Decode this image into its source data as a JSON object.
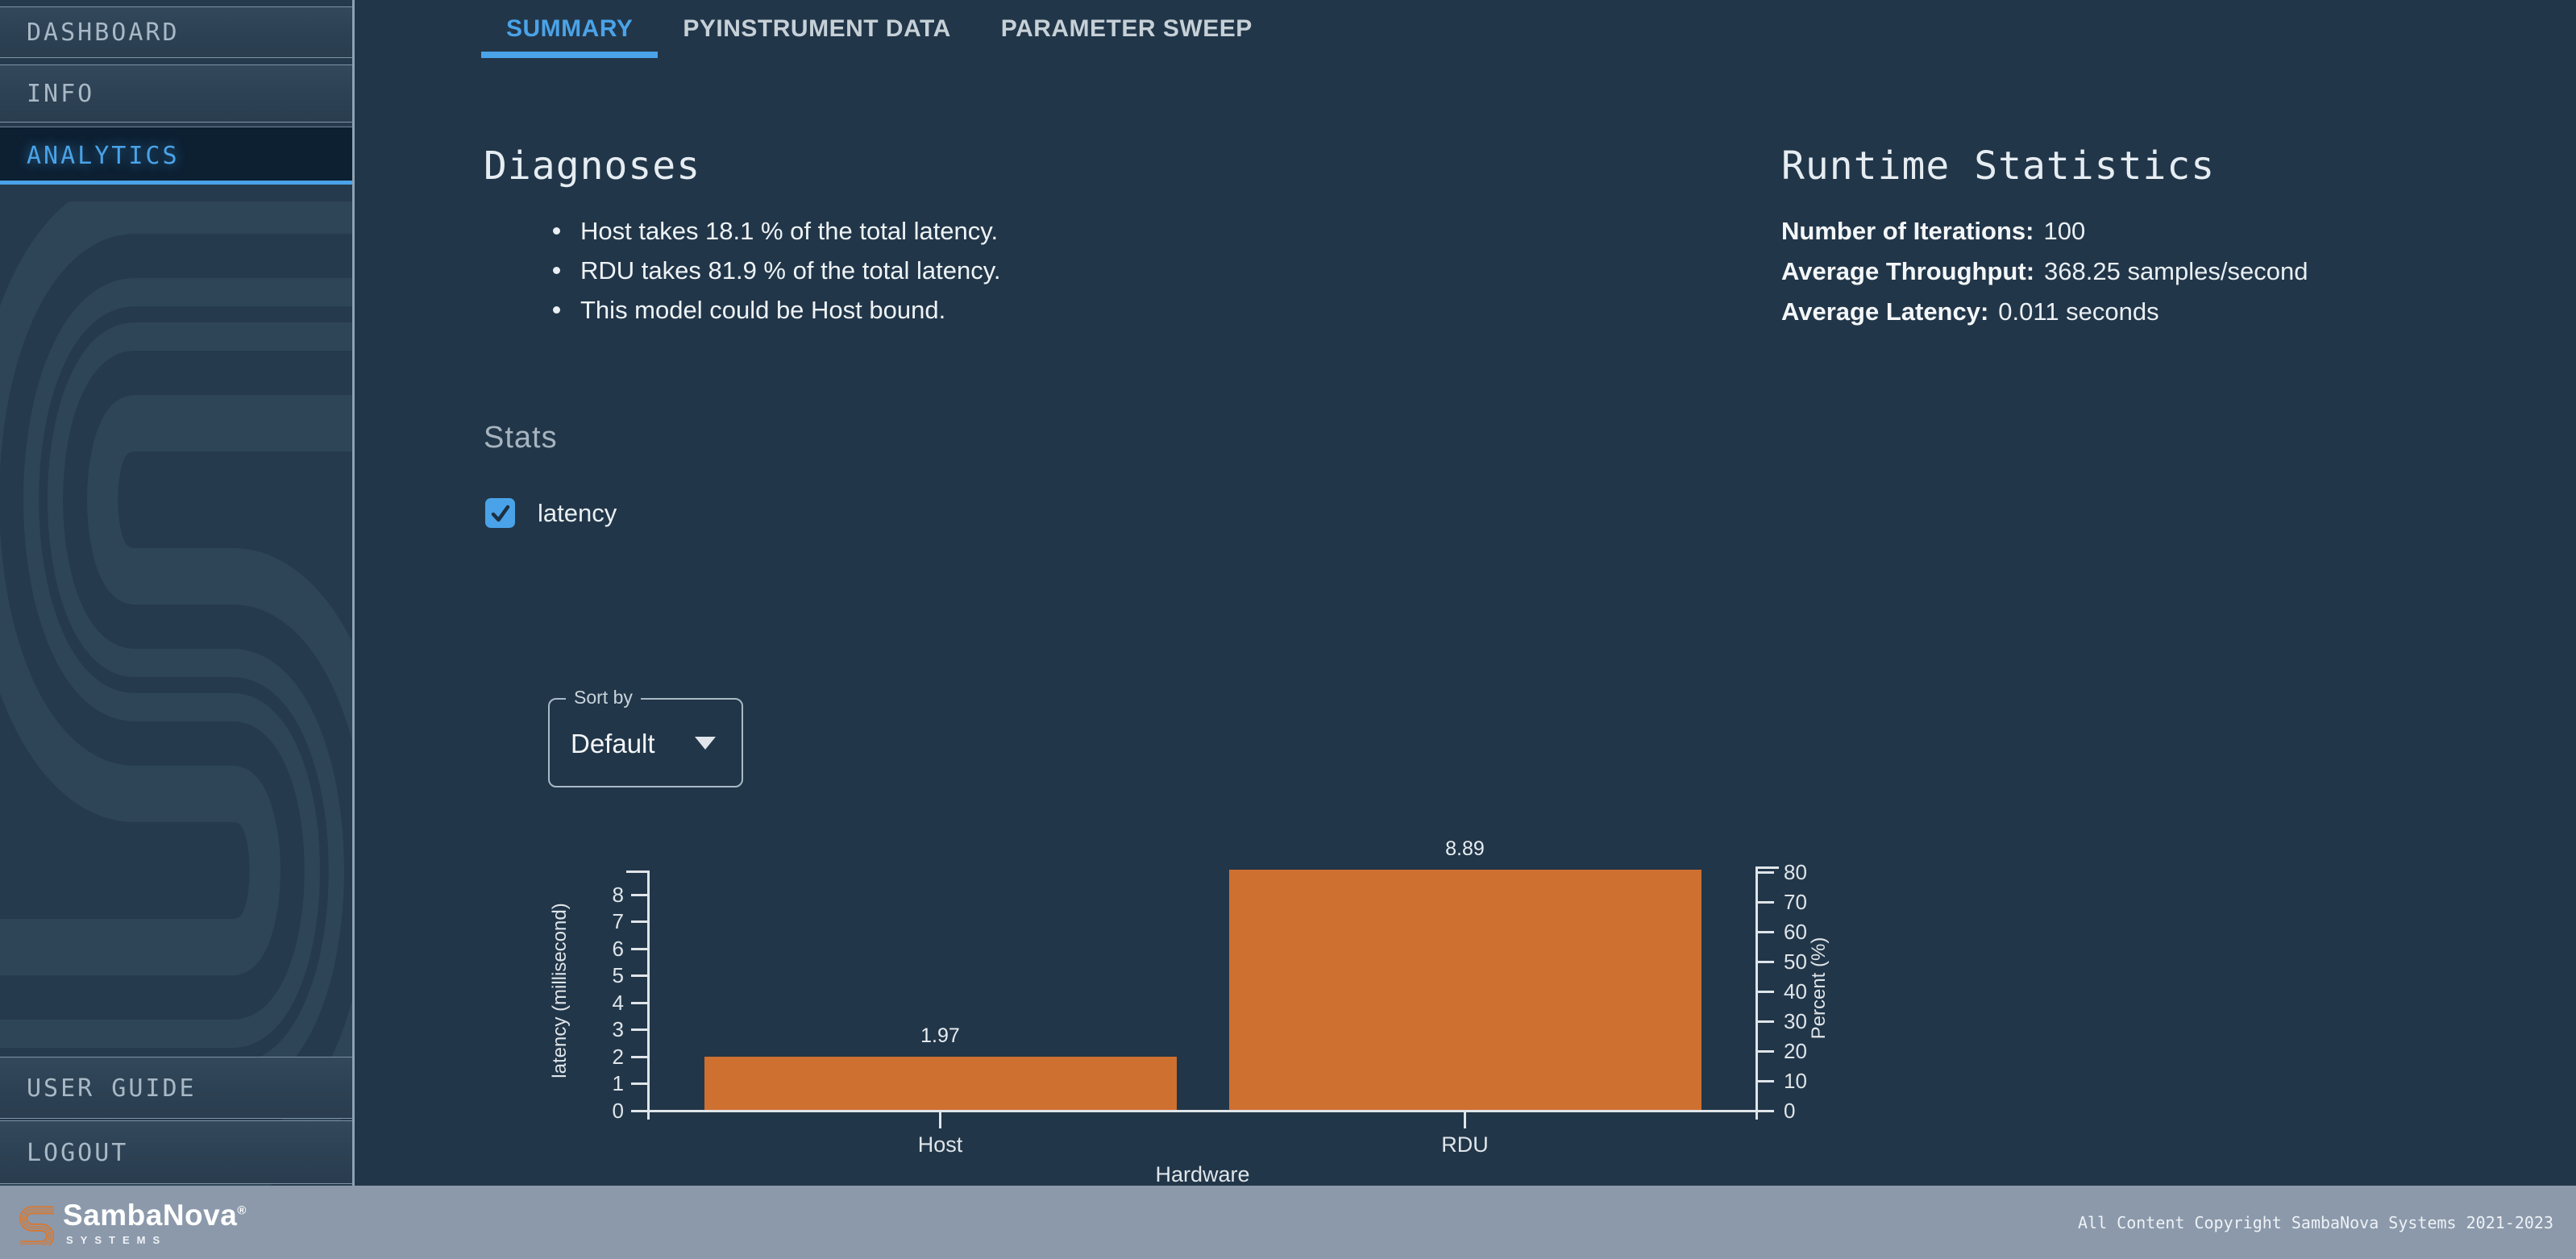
{
  "sidebar": {
    "items": [
      {
        "label": "DASHBOARD",
        "active": false
      },
      {
        "label": "INFO",
        "active": false
      },
      {
        "label": "ANALYTICS",
        "active": true
      }
    ],
    "footer_items": [
      {
        "label": "USER GUIDE"
      },
      {
        "label": "LOGOUT"
      }
    ]
  },
  "tabs": [
    {
      "label": "SUMMARY",
      "active": true
    },
    {
      "label": "PYINSTRUMENT DATA",
      "active": false
    },
    {
      "label": "PARAMETER SWEEP",
      "active": false
    }
  ],
  "diagnoses": {
    "title": "Diagnoses",
    "items": [
      "Host takes 18.1 % of the total latency.",
      "RDU takes 81.9 % of the total latency.",
      "This model could be Host bound."
    ]
  },
  "runtime": {
    "title": "Runtime Statistics",
    "stats": [
      {
        "label": "Number of Iterations:",
        "value": "100"
      },
      {
        "label": "Average Throughput:",
        "value": "368.25 samples/second"
      },
      {
        "label": "Average Latency:",
        "value": "0.011 seconds"
      }
    ]
  },
  "stats_section": {
    "title": "Stats",
    "checkbox": {
      "label": "latency",
      "checked": true
    }
  },
  "sort": {
    "label": "Sort by",
    "value": "Default"
  },
  "chart_data": {
    "type": "bar",
    "categories": [
      "Host",
      "RDU"
    ],
    "series": [
      {
        "name": "latency (millisecond)",
        "axis": "left",
        "values": [
          1.97,
          8.89
        ]
      },
      {
        "name": "Percent (%)",
        "axis": "right",
        "values": [
          18.1,
          81.9
        ]
      }
    ],
    "bar_value_labels": [
      "1.97",
      "8.89"
    ],
    "title": "",
    "xlabel": "Hardware",
    "ylabel_left": "latency (millisecond)",
    "ylabel_right": "Percent (%)",
    "yticks_left": [
      0,
      1,
      2,
      3,
      4,
      5,
      6,
      7,
      8
    ],
    "yticks_right": [
      0,
      10,
      20,
      30,
      40,
      50,
      60,
      70,
      80
    ],
    "ylim_left": [
      0,
      8.85
    ],
    "ylim_right": [
      0,
      81.5
    ],
    "bar_color": "#ce7030",
    "grid": false,
    "legend": false
  },
  "footer": {
    "brand": "SambaNova",
    "reg": "®",
    "brand_sub": "SYSTEMS",
    "copyright": "All Content Copyright SambaNova Systems 2021-2023"
  },
  "colors": {
    "accent_blue": "#4aa3e8",
    "bar_orange": "#ce7030",
    "background": "#223649",
    "sidebar": "#263a4d",
    "footer": "#8b99ab"
  }
}
